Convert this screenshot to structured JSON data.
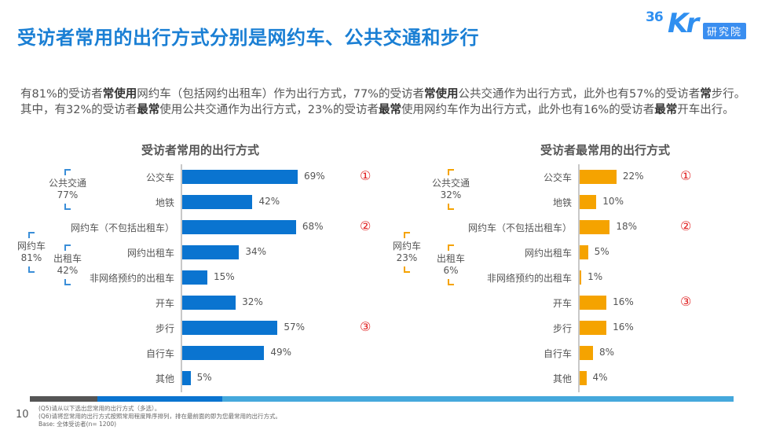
{
  "header": {
    "title": "受访者常用的出行方式分别是网约车、公共交通和步行",
    "logo": {
      "num": "36",
      "kr": "Kr",
      "badge": "研究院"
    }
  },
  "summary": {
    "segments": [
      {
        "t": "有81%的受访者",
        "b": false
      },
      {
        "t": "常使用",
        "b": true
      },
      {
        "t": "网约车（包括网约出租车）作为出行方式，77%的受访者",
        "b": false
      },
      {
        "t": "常使用",
        "b": true
      },
      {
        "t": "公共交通作为出行方式，此外也有57%的受访者",
        "b": false
      },
      {
        "t": "常",
        "b": true
      },
      {
        "t": "步行。其中，有32%的受访者",
        "b": false
      },
      {
        "t": "最常",
        "b": true
      },
      {
        "t": "使用公共交通作为出行方式，23%的受访者",
        "b": false
      },
      {
        "t": "最常",
        "b": true
      },
      {
        "t": "使用网约车作为出行方式，此外也有16%的受访者",
        "b": false
      },
      {
        "t": "最常",
        "b": true
      },
      {
        "t": "开车出行。",
        "b": false
      }
    ]
  },
  "colors": {
    "blue": "#0a74d0",
    "orange": "#f5a300",
    "rank": "#e02020",
    "footer": [
      "#555555",
      "#0a74d0",
      "#45a8dc"
    ]
  },
  "chart_data": [
    {
      "type": "bar",
      "orientation": "horizontal",
      "title": "受访者常用的出行方式",
      "categories": [
        "公交车",
        "地铁",
        "网约车（不包括出租车）",
        "网约出租车",
        "非网络预约的出租车",
        "开车",
        "步行",
        "自行车",
        "其他"
      ],
      "values": [
        69,
        42,
        68,
        34,
        15,
        32,
        57,
        49,
        5
      ],
      "labels": [
        "69%",
        "42%",
        "68%",
        "34%",
        "15%",
        "32%",
        "57%",
        "49%",
        "5%"
      ],
      "unit": "%",
      "color": "#0a74d0",
      "ranks": [
        {
          "index": 0,
          "label": "①"
        },
        {
          "index": 2,
          "label": "②"
        },
        {
          "index": 6,
          "label": "③"
        }
      ],
      "groups": [
        {
          "name": "公共交通",
          "value": "77%",
          "from": 0,
          "to": 1
        },
        {
          "name": "网约车",
          "value": "81%",
          "from": 2,
          "to": 4
        },
        {
          "name": "出租车",
          "value": "42%",
          "from": 3,
          "to": 4
        }
      ]
    },
    {
      "type": "bar",
      "orientation": "horizontal",
      "title": "受访者最常用的出行方式",
      "categories": [
        "公交车",
        "地铁",
        "网约车（不包括出租车）",
        "网约出租车",
        "非网络预约的出租车",
        "开车",
        "步行",
        "自行车",
        "其他"
      ],
      "values": [
        22,
        10,
        18,
        5,
        1,
        16,
        16,
        8,
        4
      ],
      "labels": [
        "22%",
        "10%",
        "18%",
        "5%",
        "1%",
        "16%",
        "16%",
        "8%",
        "4%"
      ],
      "unit": "%",
      "color": "#f5a300",
      "ranks": [
        {
          "index": 0,
          "label": "①"
        },
        {
          "index": 2,
          "label": "②"
        },
        {
          "index": 5,
          "label": "③"
        }
      ],
      "groups": [
        {
          "name": "公共交通",
          "value": "32%",
          "from": 0,
          "to": 1
        },
        {
          "name": "网约车",
          "value": "23%",
          "from": 2,
          "to": 4
        },
        {
          "name": "出租车",
          "value": "6%",
          "from": 3,
          "to": 4
        }
      ]
    }
  ],
  "footer": {
    "page": "10",
    "notes": [
      "(Q5)请从以下选出您常用的出行方式（多选）。",
      "(Q6)请将您常用的出行方式按照常用程度降序排列，排在最前面的即为您最常用的出行方式。",
      "Base: 全体受访者(n= 1200)"
    ]
  }
}
